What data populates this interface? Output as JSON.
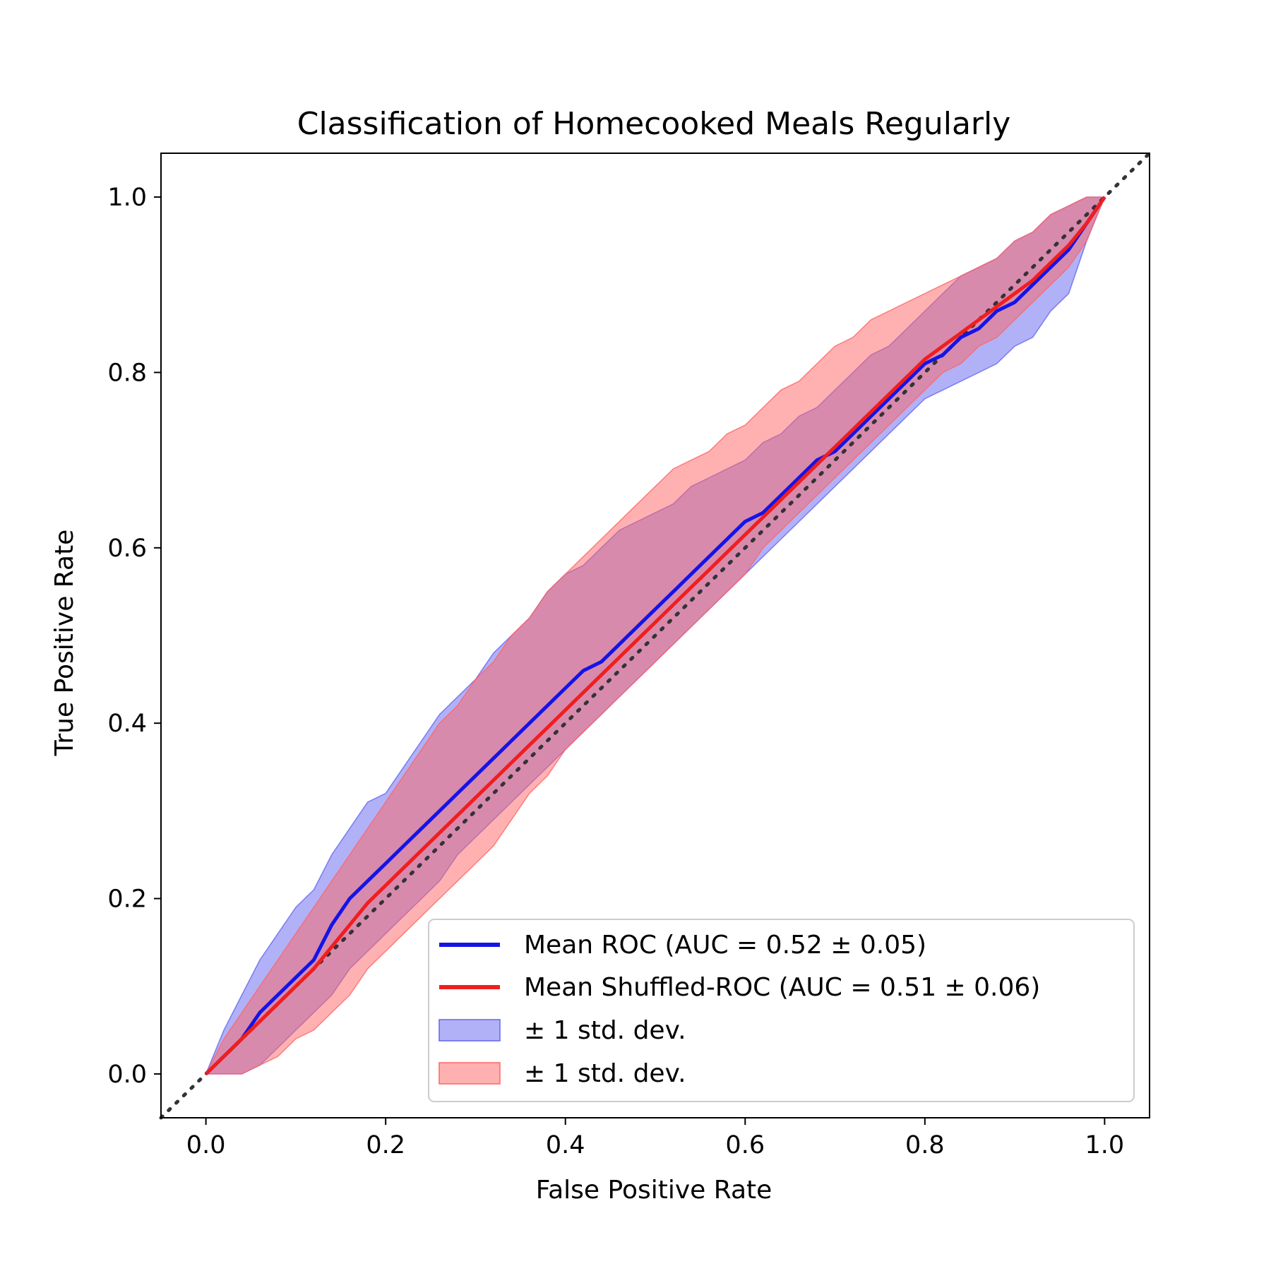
{
  "chart_data": {
    "type": "line",
    "title": "Classification of Homecooked Meals Regularly",
    "xlabel": "False Positive Rate",
    "ylabel": "True Positive Rate",
    "xlim": [
      -0.05,
      1.05
    ],
    "ylim": [
      -0.05,
      1.05
    ],
    "xticks": [
      "0.0",
      "0.2",
      "0.4",
      "0.6",
      "0.8",
      "1.0"
    ],
    "yticks": [
      "0.0",
      "0.2",
      "0.4",
      "0.6",
      "0.8",
      "1.0"
    ],
    "grid": false,
    "legend_position": "lower-right",
    "reference_line": {
      "name": "chance",
      "style": "dotted",
      "color": "#333333",
      "x": [
        -0.05,
        1.05
      ],
      "y": [
        -0.05,
        1.05
      ]
    },
    "x": [
      0.0,
      0.02,
      0.04,
      0.06,
      0.08,
      0.1,
      0.12,
      0.14,
      0.16,
      0.18,
      0.2,
      0.22,
      0.24,
      0.26,
      0.28,
      0.3,
      0.32,
      0.34,
      0.36,
      0.38,
      0.4,
      0.42,
      0.44,
      0.46,
      0.48,
      0.5,
      0.52,
      0.54,
      0.56,
      0.58,
      0.6,
      0.62,
      0.64,
      0.66,
      0.68,
      0.7,
      0.72,
      0.74,
      0.76,
      0.78,
      0.8,
      0.82,
      0.84,
      0.86,
      0.88,
      0.9,
      0.92,
      0.94,
      0.96,
      0.98,
      1.0
    ],
    "series": [
      {
        "name": "Mean ROC (AUC = 0.52 ± 0.05)",
        "color": "#1414e6",
        "values": [
          0.0,
          0.02,
          0.04,
          0.07,
          0.09,
          0.11,
          0.13,
          0.17,
          0.2,
          0.22,
          0.24,
          0.26,
          0.28,
          0.3,
          0.32,
          0.34,
          0.36,
          0.38,
          0.4,
          0.42,
          0.44,
          0.46,
          0.47,
          0.49,
          0.51,
          0.53,
          0.55,
          0.57,
          0.59,
          0.61,
          0.63,
          0.64,
          0.66,
          0.68,
          0.7,
          0.71,
          0.73,
          0.75,
          0.77,
          0.79,
          0.81,
          0.82,
          0.84,
          0.85,
          0.87,
          0.88,
          0.9,
          0.92,
          0.94,
          0.97,
          1.0
        ]
      },
      {
        "name": "Mean Shuffled-ROC (AUC = 0.51 ± 0.06)",
        "color": "#f01e1e",
        "values": [
          0.0,
          0.02,
          0.04,
          0.06,
          0.08,
          0.1,
          0.12,
          0.145,
          0.17,
          0.195,
          0.215,
          0.235,
          0.255,
          0.275,
          0.295,
          0.315,
          0.335,
          0.355,
          0.375,
          0.395,
          0.415,
          0.435,
          0.455,
          0.475,
          0.495,
          0.515,
          0.535,
          0.555,
          0.575,
          0.595,
          0.615,
          0.635,
          0.655,
          0.675,
          0.695,
          0.715,
          0.735,
          0.755,
          0.775,
          0.795,
          0.815,
          0.83,
          0.845,
          0.86,
          0.875,
          0.89,
          0.905,
          0.925,
          0.945,
          0.97,
          1.0
        ]
      }
    ],
    "bands": [
      {
        "name": "± 1 std. dev.",
        "color": "#6464f0",
        "opacity": 0.5,
        "upper": [
          0.0,
          0.05,
          0.09,
          0.13,
          0.16,
          0.19,
          0.21,
          0.25,
          0.28,
          0.31,
          0.32,
          0.35,
          0.38,
          0.41,
          0.43,
          0.45,
          0.48,
          0.5,
          0.52,
          0.55,
          0.57,
          0.58,
          0.6,
          0.62,
          0.63,
          0.64,
          0.65,
          0.67,
          0.68,
          0.69,
          0.7,
          0.72,
          0.73,
          0.75,
          0.76,
          0.78,
          0.8,
          0.82,
          0.83,
          0.85,
          0.87,
          0.89,
          0.91,
          0.92,
          0.93,
          0.95,
          0.96,
          0.98,
          0.99,
          1.0,
          1.0
        ],
        "lower": [
          0.0,
          0.0,
          0.0,
          0.01,
          0.03,
          0.05,
          0.07,
          0.09,
          0.12,
          0.14,
          0.16,
          0.18,
          0.2,
          0.22,
          0.25,
          0.27,
          0.29,
          0.31,
          0.33,
          0.35,
          0.37,
          0.39,
          0.41,
          0.43,
          0.45,
          0.47,
          0.49,
          0.51,
          0.53,
          0.55,
          0.57,
          0.59,
          0.61,
          0.63,
          0.65,
          0.67,
          0.69,
          0.71,
          0.73,
          0.75,
          0.77,
          0.78,
          0.79,
          0.8,
          0.81,
          0.83,
          0.84,
          0.87,
          0.89,
          0.95,
          1.0
        ]
      },
      {
        "name": "± 1 std. dev.",
        "color": "#ff6464",
        "opacity": 0.5,
        "upper": [
          0.0,
          0.04,
          0.07,
          0.1,
          0.13,
          0.16,
          0.19,
          0.22,
          0.25,
          0.28,
          0.31,
          0.34,
          0.37,
          0.4,
          0.42,
          0.45,
          0.47,
          0.5,
          0.52,
          0.55,
          0.57,
          0.59,
          0.61,
          0.63,
          0.65,
          0.67,
          0.69,
          0.7,
          0.71,
          0.73,
          0.74,
          0.76,
          0.78,
          0.79,
          0.81,
          0.83,
          0.84,
          0.86,
          0.87,
          0.88,
          0.89,
          0.9,
          0.91,
          0.92,
          0.93,
          0.95,
          0.96,
          0.98,
          0.99,
          1.0,
          1.0
        ],
        "lower": [
          0.0,
          0.0,
          0.0,
          0.01,
          0.02,
          0.04,
          0.05,
          0.07,
          0.09,
          0.12,
          0.14,
          0.16,
          0.18,
          0.2,
          0.22,
          0.24,
          0.26,
          0.29,
          0.32,
          0.34,
          0.37,
          0.39,
          0.41,
          0.43,
          0.45,
          0.47,
          0.49,
          0.51,
          0.53,
          0.55,
          0.57,
          0.6,
          0.62,
          0.64,
          0.66,
          0.68,
          0.7,
          0.72,
          0.74,
          0.76,
          0.78,
          0.8,
          0.81,
          0.83,
          0.84,
          0.86,
          0.88,
          0.9,
          0.92,
          0.95,
          1.0
        ]
      }
    ]
  }
}
